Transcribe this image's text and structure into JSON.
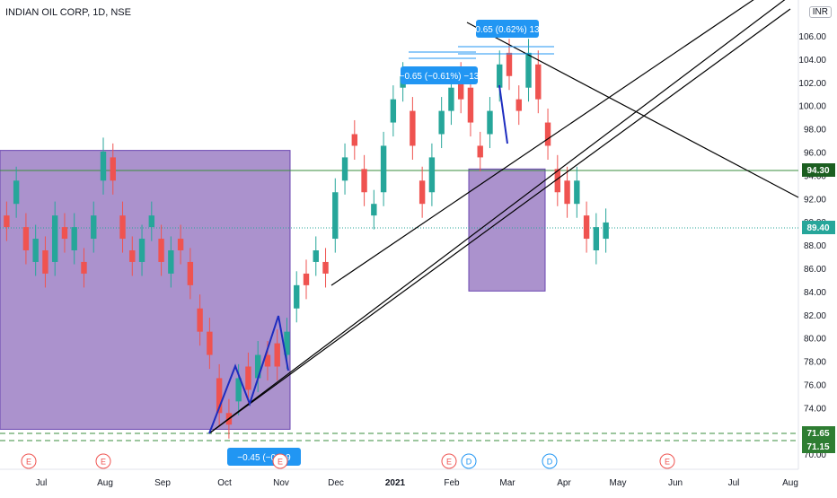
{
  "header": {
    "title": "INDIAN OIL CORP, 1D, NSE",
    "currency": "INR"
  },
  "colors": {
    "up": "#26a69a",
    "down": "#ef5350",
    "zone": "#9c7fc4",
    "zone_border": "#6a45b0",
    "trend": "#000000",
    "pattern": "#1d2cbf",
    "level": "#388e3c",
    "label_bg": "#2196f3",
    "last_price": "#26a69a"
  },
  "chart_data": {
    "type": "candlestick",
    "title": "INDIAN OIL CORP, 1D, NSE",
    "x_ticks": [
      "Jul",
      "Aug",
      "Sep",
      "Oct",
      "Nov",
      "Dec",
      "2021",
      "Feb",
      "Mar",
      "Apr",
      "May",
      "Jun",
      "Jul",
      "Aug"
    ],
    "y_ticks": [
      "106.00",
      "104.00",
      "102.00",
      "100.00",
      "98.00",
      "96.00",
      "94.00",
      "92.00",
      "90.00",
      "88.00",
      "86.00",
      "84.00",
      "82.00",
      "80.00",
      "78.00",
      "76.00",
      "74.00",
      "72.00",
      "70.00"
    ],
    "ylim": [
      69.5,
      108.5
    ],
    "last_price": 89.4,
    "horizontal_levels": [
      {
        "value": 94.3,
        "label": "94.30",
        "style": "solid"
      },
      {
        "value": 71.65,
        "label": "71.65",
        "style": "dashed"
      },
      {
        "value": 71.15,
        "label": "71.15",
        "style": "dashed"
      }
    ],
    "measure_labels": [
      {
        "text": "0.65 (0.62%) 13",
        "price": 107.3
      },
      {
        "text": "−0.65 (−0.61%) −13",
        "price": 102.9
      },
      {
        "text": "−0.45 (−0.6",
        "suffix": "9",
        "price": 70.3
      }
    ],
    "event_markers": [
      "E",
      "E",
      "E",
      "E",
      "D",
      "D",
      "E"
    ],
    "zones": [
      {
        "x_from": "Jun",
        "x_to": "Nov",
        "y_from": 71.6,
        "y_to": 95.6
      },
      {
        "x_from": "Feb",
        "x_to": "Mar",
        "y_from": 83.5,
        "y_to": 94.0
      }
    ],
    "ohlc_path": [
      [
        90,
        89
      ],
      [
        91,
        93
      ],
      [
        89,
        87
      ],
      [
        86,
        88
      ],
      [
        87,
        85
      ],
      [
        86,
        90
      ],
      [
        89,
        88
      ],
      [
        87,
        89
      ],
      [
        86,
        85
      ],
      [
        88,
        90
      ],
      [
        93,
        95.5
      ],
      [
        95,
        93
      ],
      [
        90,
        88
      ],
      [
        87,
        86
      ],
      [
        86,
        88
      ],
      [
        89,
        90
      ],
      [
        88,
        86
      ],
      [
        85,
        87
      ],
      [
        88,
        87
      ],
      [
        86,
        84
      ],
      [
        82,
        80
      ],
      [
        80,
        78
      ],
      [
        76,
        73
      ],
      [
        73,
        72
      ],
      [
        74,
        76
      ],
      [
        77,
        75
      ],
      [
        76,
        78
      ],
      [
        78,
        77
      ],
      [
        79,
        77
      ],
      [
        78,
        80
      ],
      [
        82,
        84
      ],
      [
        85,
        84
      ],
      [
        86,
        87
      ],
      [
        86,
        85
      ],
      [
        88,
        92
      ],
      [
        93,
        95
      ],
      [
        97,
        96
      ],
      [
        94,
        92
      ],
      [
        90,
        91
      ],
      [
        92,
        96
      ],
      [
        98,
        100
      ],
      [
        101,
        102
      ],
      [
        99,
        96
      ],
      [
        93,
        91
      ],
      [
        92,
        95
      ],
      [
        97,
        99
      ],
      [
        99,
        101
      ],
      [
        102,
        100
      ],
      [
        101,
        98
      ],
      [
        96,
        95
      ],
      [
        97,
        99
      ],
      [
        101,
        103
      ],
      [
        104,
        102
      ],
      [
        100,
        99
      ],
      [
        101,
        104
      ],
      [
        103,
        100
      ],
      [
        98,
        96
      ],
      [
        94,
        92
      ],
      [
        93,
        91
      ],
      [
        91,
        93
      ],
      [
        90,
        88
      ],
      [
        87,
        89
      ],
      [
        88,
        89.4
      ]
    ]
  }
}
